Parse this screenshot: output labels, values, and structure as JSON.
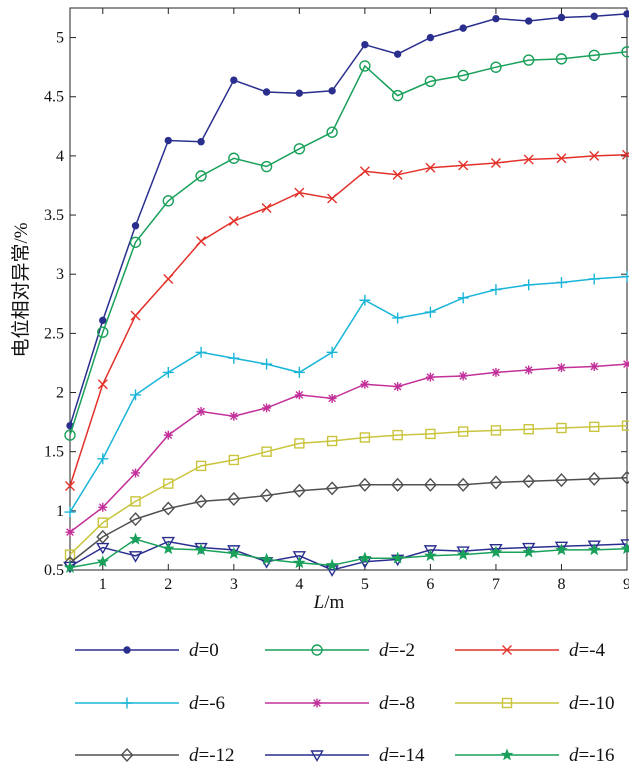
{
  "chart_data": {
    "type": "line",
    "title": "",
    "xlabel_italic": "L",
    "xlabel_unit": "/m",
    "ylabel": "电位相对异常/%",
    "xlim": [
      0.5,
      9
    ],
    "ylim": [
      0.5,
      5.25
    ],
    "xticks": [
      1,
      2,
      3,
      4,
      5,
      6,
      7,
      8,
      9
    ],
    "yticks": [
      0.5,
      1,
      1.5,
      2,
      2.5,
      3,
      3.5,
      4,
      4.5,
      5
    ],
    "ytick_labels": [
      "0.5",
      "1",
      "1.5",
      "2",
      "2.5",
      "3",
      "3.5",
      "4",
      "4.5",
      "5"
    ],
    "x": [
      0.5,
      1,
      1.5,
      2,
      2.5,
      3,
      3.5,
      4,
      4.5,
      5,
      5.5,
      6,
      6.5,
      7,
      7.5,
      8,
      8.5,
      9
    ],
    "series": [
      {
        "var": "d",
        "eq": "=0",
        "color": "#2a2f8e",
        "marker": "dot",
        "values": [
          1.72,
          2.61,
          3.41,
          4.13,
          4.12,
          4.64,
          4.54,
          4.53,
          4.55,
          4.94,
          4.86,
          5.0,
          5.08,
          5.16,
          5.14,
          5.17,
          5.18,
          5.2
        ]
      },
      {
        "var": "d",
        "eq": "=-2",
        "color": "#19a05a",
        "marker": "circle",
        "values": [
          1.64,
          2.51,
          3.27,
          3.62,
          3.83,
          3.98,
          3.91,
          4.06,
          4.2,
          4.76,
          4.51,
          4.63,
          4.68,
          4.75,
          4.81,
          4.82,
          4.85,
          4.88
        ]
      },
      {
        "var": "d",
        "eq": "=-4",
        "color": "#e3312a",
        "marker": "x",
        "values": [
          1.21,
          2.07,
          2.65,
          2.96,
          3.28,
          3.45,
          3.56,
          3.69,
          3.64,
          3.87,
          3.84,
          3.9,
          3.92,
          3.94,
          3.97,
          3.98,
          4.0,
          4.01
        ]
      },
      {
        "var": "d",
        "eq": "=-6",
        "color": "#19b5d8",
        "marker": "plus",
        "values": [
          0.99,
          1.44,
          1.98,
          2.17,
          2.34,
          2.29,
          2.24,
          2.17,
          2.34,
          2.78,
          2.63,
          2.68,
          2.8,
          2.87,
          2.91,
          2.93,
          2.96,
          2.98
        ]
      },
      {
        "var": "d",
        "eq": "=-8",
        "color": "#c2309a",
        "marker": "asterisk",
        "values": [
          0.82,
          1.03,
          1.32,
          1.64,
          1.84,
          1.8,
          1.87,
          1.98,
          1.95,
          2.07,
          2.05,
          2.13,
          2.14,
          2.17,
          2.19,
          2.21,
          2.22,
          2.24
        ]
      },
      {
        "var": "d",
        "eq": "=-10",
        "color": "#c9c43c",
        "marker": "square",
        "values": [
          0.63,
          0.9,
          1.08,
          1.23,
          1.38,
          1.43,
          1.5,
          1.57,
          1.59,
          1.62,
          1.64,
          1.65,
          1.67,
          1.68,
          1.69,
          1.7,
          1.71,
          1.72
        ]
      },
      {
        "var": "d",
        "eq": "=-12",
        "color": "#505050",
        "marker": "diamond",
        "values": [
          0.56,
          0.78,
          0.93,
          1.02,
          1.08,
          1.1,
          1.13,
          1.17,
          1.19,
          1.22,
          1.22,
          1.22,
          1.22,
          1.24,
          1.25,
          1.26,
          1.27,
          1.28
        ]
      },
      {
        "var": "d",
        "eq": "=-14",
        "color": "#2a2f8e",
        "marker": "triangle",
        "values": [
          0.53,
          0.69,
          0.62,
          0.74,
          0.69,
          0.67,
          0.57,
          0.62,
          0.5,
          0.57,
          0.59,
          0.67,
          0.66,
          0.68,
          0.69,
          0.7,
          0.71,
          0.72
        ]
      },
      {
        "var": "d",
        "eq": "=-16",
        "color": "#19a05a",
        "marker": "star",
        "values": [
          0.52,
          0.57,
          0.76,
          0.68,
          0.67,
          0.64,
          0.59,
          0.56,
          0.54,
          0.6,
          0.6,
          0.62,
          0.63,
          0.65,
          0.65,
          0.67,
          0.67,
          0.68
        ]
      }
    ],
    "legend_placement": "bottom",
    "grid": false
  }
}
